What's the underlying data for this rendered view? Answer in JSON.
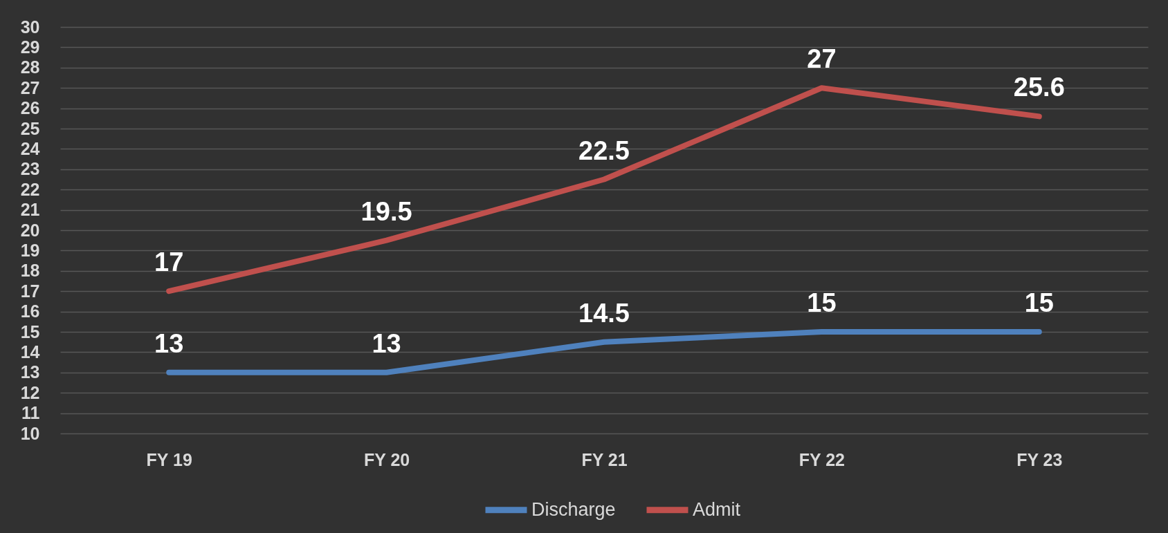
{
  "chart_data": {
    "type": "line",
    "categories": [
      "FY 19",
      "FY 20",
      "FY 21",
      "FY 22",
      "FY 23"
    ],
    "series": [
      {
        "name": "Discharge",
        "color": "#4f81bd",
        "values": [
          13,
          13,
          14.5,
          15,
          15
        ]
      },
      {
        "name": "Admit",
        "color": "#c0504d",
        "values": [
          17,
          19.5,
          22.5,
          27,
          25.6
        ]
      }
    ],
    "ylim": [
      10,
      30
    ],
    "yticks": [
      10,
      11,
      12,
      13,
      14,
      15,
      16,
      17,
      18,
      19,
      20,
      21,
      22,
      23,
      24,
      25,
      26,
      27,
      28,
      29,
      30
    ],
    "grid": "y",
    "legend": "bottom",
    "data_labels": true,
    "line_style": "solid"
  }
}
